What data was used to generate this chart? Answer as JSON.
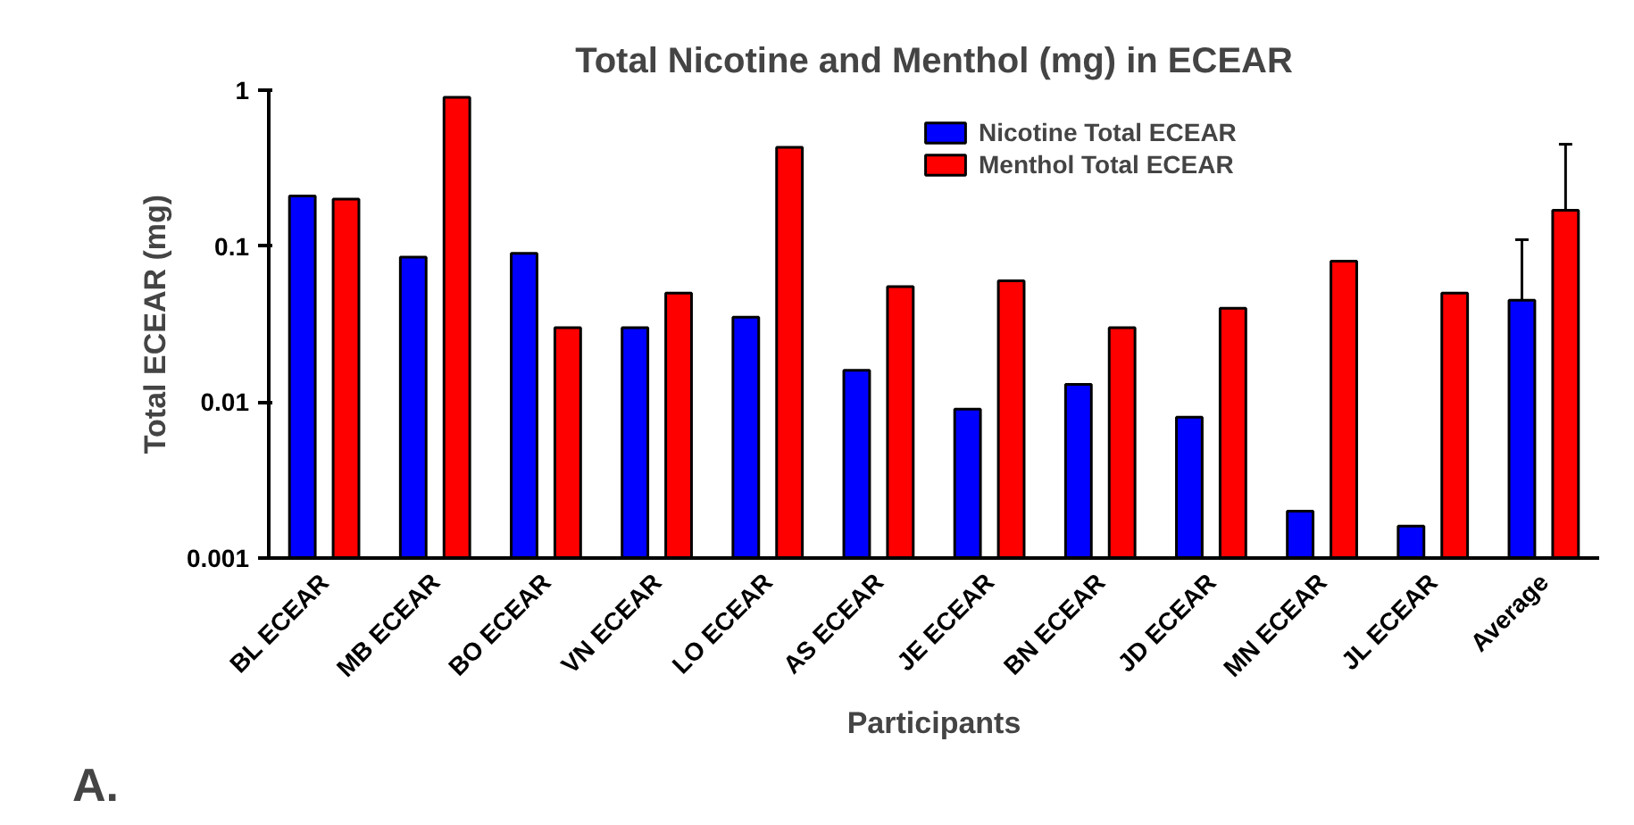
{
  "chart_data": {
    "type": "bar",
    "title": "Total Nicotine and Menthol (mg) in ECEAR",
    "xlabel": "Participants",
    "ylabel": "Total ECEAR (mg)",
    "categories": [
      "BL ECEAR",
      "MB ECEAR",
      "BO ECEAR",
      "VN ECEAR",
      "LO ECEAR",
      "AS ECEAR",
      "JE ECEAR",
      "BN ECEAR",
      "JD ECEAR",
      "MN ECEAR",
      "JL ECEAR",
      "Average"
    ],
    "series": [
      {
        "name": "Nicotine Total ECEAR",
        "color": "#0000ff",
        "values": [
          0.21,
          0.085,
          0.09,
          0.03,
          0.035,
          0.016,
          0.009,
          0.013,
          0.008,
          0.002,
          0.0016,
          0.045
        ],
        "errors": [
          null,
          null,
          null,
          null,
          null,
          null,
          null,
          null,
          null,
          null,
          null,
          [
            0.045,
            0.11
          ]
        ]
      },
      {
        "name": "Menthol Total ECEAR",
        "color": "#ff0000",
        "values": [
          0.2,
          0.9,
          0.03,
          0.05,
          0.43,
          0.055,
          0.06,
          0.03,
          0.04,
          0.08,
          0.05,
          0.17
        ],
        "errors": [
          null,
          null,
          null,
          null,
          null,
          null,
          null,
          null,
          null,
          null,
          null,
          [
            0.17,
            0.45
          ]
        ]
      }
    ],
    "log": "y",
    "ylim": [
      0.001,
      1
    ],
    "yticks": [
      0.001,
      0.01,
      0.1,
      1
    ],
    "grid": false,
    "legend": "top right",
    "annotations": [
      "A."
    ]
  }
}
